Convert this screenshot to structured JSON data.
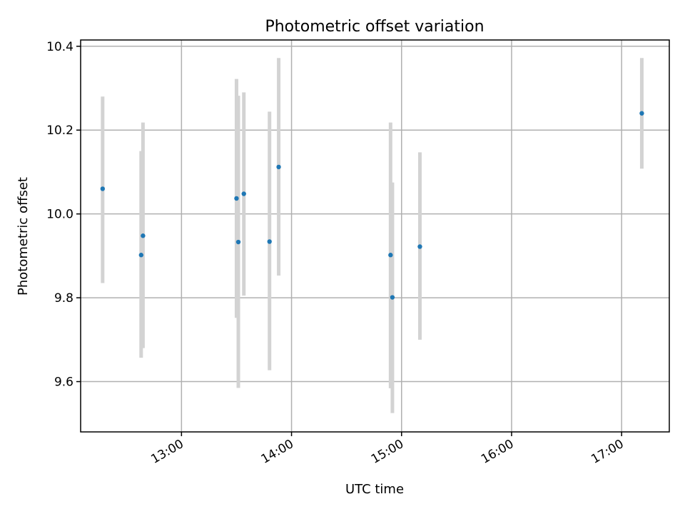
{
  "chart_data": {
    "type": "scatter",
    "title": "Photometric offset variation",
    "xlabel": "UTC time",
    "ylabel": "Photometric offset",
    "x_axis": {
      "type": "time",
      "range": [
        "12:05",
        "17:26"
      ],
      "tick_labels": [
        "13:00",
        "14:00",
        "15:00",
        "16:00",
        "17:00"
      ],
      "tick_label_rotation_deg": 30
    },
    "y_axis": {
      "range": [
        9.48,
        10.415
      ],
      "ticks": [
        9.6,
        9.8,
        10.0,
        10.2,
        10.4
      ],
      "tick_labels": [
        "9.6",
        "9.8",
        "10.0",
        "10.2",
        "10.4"
      ]
    },
    "grid": true,
    "point_color": "#1f77b4",
    "errorbar_color": "#d3d3d3",
    "points": [
      {
        "t": "12:17",
        "y": 10.06,
        "yerr_low": 9.835,
        "yerr_high": 10.28
      },
      {
        "t": "12:38",
        "y": 9.902,
        "yerr_low": 9.657,
        "yerr_high": 10.15
      },
      {
        "t": "12:39",
        "y": 9.948,
        "yerr_low": 9.68,
        "yerr_high": 10.218
      },
      {
        "t": "13:30",
        "y": 10.037,
        "yerr_low": 9.752,
        "yerr_high": 10.322
      },
      {
        "t": "13:31",
        "y": 9.933,
        "yerr_low": 9.585,
        "yerr_high": 10.282
      },
      {
        "t": "13:34",
        "y": 10.048,
        "yerr_low": 9.805,
        "yerr_high": 10.29
      },
      {
        "t": "13:48",
        "y": 9.934,
        "yerr_low": 9.627,
        "yerr_high": 10.244
      },
      {
        "t": "13:53",
        "y": 10.112,
        "yerr_low": 9.853,
        "yerr_high": 10.372
      },
      {
        "t": "14:54",
        "y": 9.902,
        "yerr_low": 9.584,
        "yerr_high": 10.218
      },
      {
        "t": "14:55",
        "y": 9.801,
        "yerr_low": 9.525,
        "yerr_high": 10.075
      },
      {
        "t": "15:10",
        "y": 9.922,
        "yerr_low": 9.7,
        "yerr_high": 10.147
      },
      {
        "t": "17:11",
        "y": 10.24,
        "yerr_low": 10.108,
        "yerr_high": 10.372
      }
    ]
  }
}
